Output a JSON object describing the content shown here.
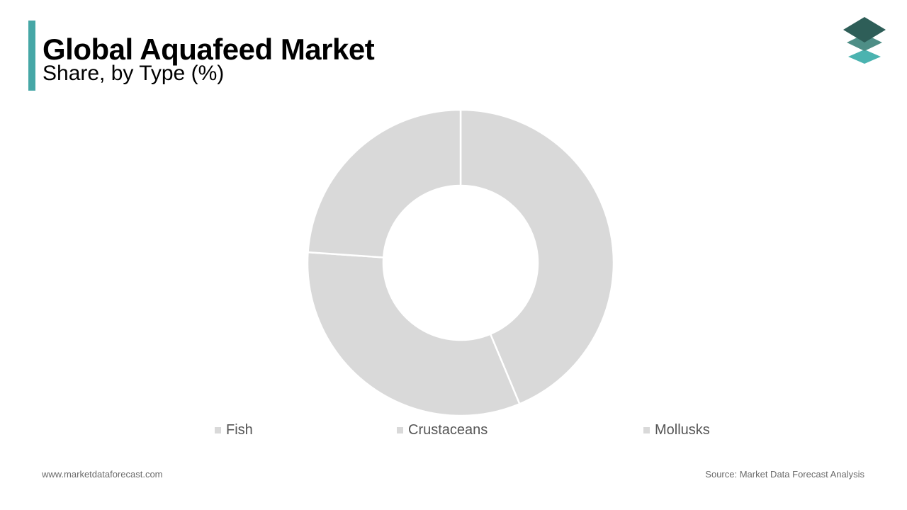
{
  "header": {
    "title": "Global Aquafeed Market",
    "subtitle": "Share, by Type (%)",
    "accent_color": "#46a7a6"
  },
  "logo": {
    "icon": "stacked-layers-icon",
    "colors": [
      "#2e5e58",
      "#4e8e86",
      "#4bb3b0"
    ]
  },
  "chart_data": {
    "type": "pie",
    "style": "donut",
    "title": "",
    "categories": [
      "Fish",
      "Crustaceans",
      "Mollusks"
    ],
    "values": [
      43.7,
      32.4,
      23.9
    ],
    "colors": [
      "#d9d9d9",
      "#d9d9d9",
      "#d9d9d9"
    ],
    "legend": "bottom"
  },
  "legend": {
    "items": [
      {
        "label": "Fish",
        "color": "#d9d9d9"
      },
      {
        "label": "Crustaceans",
        "color": "#d9d9d9"
      },
      {
        "label": "Mollusks",
        "color": "#d9d9d9"
      }
    ]
  },
  "footer": {
    "website": "www.marketdataforecast.com",
    "source": "Source: Market Data Forecast Analysis"
  }
}
